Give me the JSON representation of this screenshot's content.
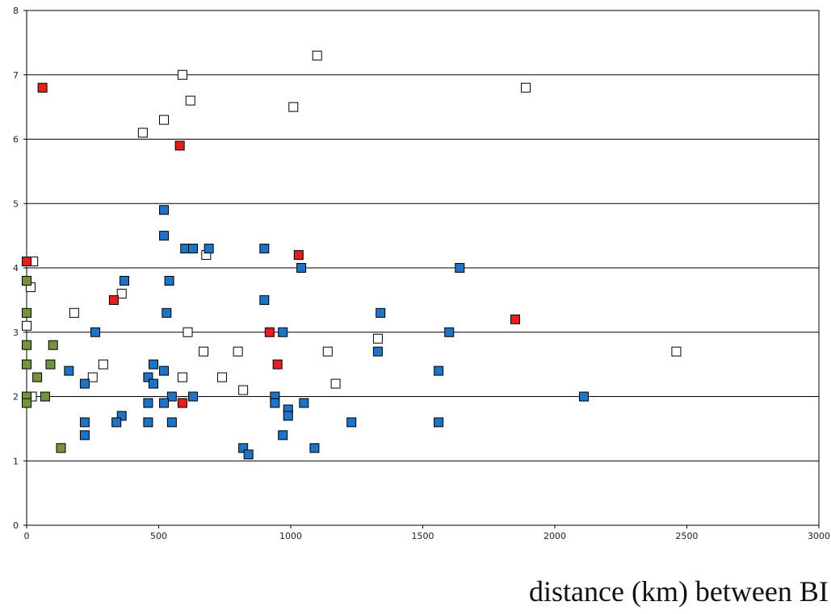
{
  "chart_data": {
    "type": "scatter",
    "title": "",
    "xlabel": "distance (km) between BI",
    "ylabel": "",
    "xlim": [
      0,
      3000
    ],
    "ylim": [
      0,
      8
    ],
    "x_ticks": [
      0,
      500,
      1000,
      1500,
      2000,
      2500,
      3000
    ],
    "y_ticks": [
      0,
      1,
      2,
      3,
      4,
      5,
      6,
      7,
      8
    ],
    "grid": "horizontal",
    "legend": "none",
    "series": [
      {
        "color": "#ffffff",
        "points": [
          [
            1100,
            7.3
          ],
          [
            590,
            7.0
          ],
          [
            1890,
            6.8
          ],
          [
            620,
            6.6
          ],
          [
            1010,
            6.5
          ],
          [
            520,
            6.3
          ],
          [
            440,
            6.1
          ],
          [
            680,
            4.2
          ],
          [
            25,
            4.1
          ],
          [
            15,
            3.7
          ],
          [
            360,
            3.6
          ],
          [
            180,
            3.3
          ],
          [
            0,
            3.1
          ],
          [
            610,
            3.0
          ],
          [
            1330,
            2.9
          ],
          [
            670,
            2.7
          ],
          [
            800,
            2.7
          ],
          [
            1140,
            2.7
          ],
          [
            2460,
            2.7
          ],
          [
            290,
            2.5
          ],
          [
            250,
            2.3
          ],
          [
            590,
            2.3
          ],
          [
            740,
            2.3
          ],
          [
            1170,
            2.2
          ],
          [
            820,
            2.1
          ],
          [
            20,
            2.0
          ]
        ]
      },
      {
        "color": "#e31e1e",
        "points": [
          [
            60,
            6.8
          ],
          [
            580,
            5.9
          ],
          [
            1030,
            4.2
          ],
          [
            0,
            4.1
          ],
          [
            330,
            3.5
          ],
          [
            1850,
            3.2
          ],
          [
            920,
            3.0
          ],
          [
            950,
            2.5
          ],
          [
            590,
            1.9
          ]
        ]
      },
      {
        "color": "#1f73c4",
        "points": [
          [
            520,
            4.9
          ],
          [
            520,
            4.5
          ],
          [
            600,
            4.3
          ],
          [
            630,
            4.3
          ],
          [
            690,
            4.3
          ],
          [
            900,
            4.3
          ],
          [
            1040,
            4.0
          ],
          [
            1640,
            4.0
          ],
          [
            370,
            3.8
          ],
          [
            540,
            3.8
          ],
          [
            900,
            3.5
          ],
          [
            530,
            3.3
          ],
          [
            1340,
            3.3
          ],
          [
            260,
            3.0
          ],
          [
            970,
            3.0
          ],
          [
            1600,
            3.0
          ],
          [
            1330,
            2.7
          ],
          [
            480,
            2.5
          ],
          [
            160,
            2.4
          ],
          [
            520,
            2.4
          ],
          [
            1560,
            2.4
          ],
          [
            460,
            2.3
          ],
          [
            220,
            2.2
          ],
          [
            480,
            2.2
          ],
          [
            550,
            2.0
          ],
          [
            630,
            2.0
          ],
          [
            940,
            2.0
          ],
          [
            2110,
            2.0
          ],
          [
            460,
            1.9
          ],
          [
            520,
            1.9
          ],
          [
            940,
            1.9
          ],
          [
            1050,
            1.9
          ],
          [
            990,
            1.8
          ],
          [
            360,
            1.7
          ],
          [
            990,
            1.7
          ],
          [
            220,
            1.6
          ],
          [
            340,
            1.6
          ],
          [
            460,
            1.6
          ],
          [
            550,
            1.6
          ],
          [
            1230,
            1.6
          ],
          [
            1560,
            1.6
          ],
          [
            220,
            1.4
          ],
          [
            970,
            1.4
          ],
          [
            820,
            1.2
          ],
          [
            1090,
            1.2
          ],
          [
            840,
            1.1
          ]
        ]
      },
      {
        "color": "#76923c",
        "points": [
          [
            0,
            3.8
          ],
          [
            0,
            3.3
          ],
          [
            0,
            2.8
          ],
          [
            100,
            2.8
          ],
          [
            0,
            2.5
          ],
          [
            90,
            2.5
          ],
          [
            40,
            2.3
          ],
          [
            0,
            2.0
          ],
          [
            70,
            2.0
          ],
          [
            0,
            1.9
          ],
          [
            130,
            1.2
          ]
        ]
      }
    ]
  }
}
